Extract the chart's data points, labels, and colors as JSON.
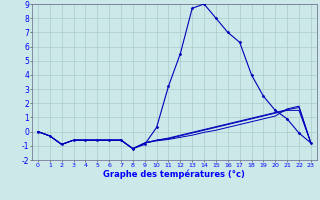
{
  "xlabel": "Graphe des températures (°c)",
  "bg_color": "#cce8e8",
  "grid_color": "#aacccc",
  "line_color": "#0000bb",
  "hours": [
    0,
    1,
    2,
    3,
    4,
    5,
    6,
    7,
    8,
    9,
    10,
    11,
    12,
    13,
    14,
    15,
    16,
    17,
    18,
    19,
    20,
    21,
    22,
    23
  ],
  "temp_main": [
    0.0,
    -0.3,
    -0.9,
    -0.6,
    -0.6,
    -0.6,
    -0.6,
    -0.6,
    -1.2,
    -0.9,
    0.3,
    3.2,
    5.5,
    8.7,
    9.0,
    8.0,
    7.0,
    6.3,
    4.0,
    2.5,
    1.5,
    0.9,
    -0.1,
    -0.8
  ],
  "temp_line1": [
    0.0,
    -0.3,
    -0.9,
    -0.6,
    -0.6,
    -0.6,
    -0.6,
    -0.6,
    -1.2,
    -0.8,
    -0.6,
    -0.5,
    -0.3,
    -0.1,
    0.1,
    0.3,
    0.5,
    0.7,
    0.9,
    1.1,
    1.3,
    1.5,
    1.5,
    -0.8
  ],
  "temp_line2": [
    0.0,
    -0.3,
    -0.9,
    -0.6,
    -0.6,
    -0.6,
    -0.6,
    -0.6,
    -1.2,
    -0.8,
    -0.6,
    -0.45,
    -0.25,
    -0.05,
    0.15,
    0.35,
    0.55,
    0.75,
    0.95,
    1.15,
    1.35,
    1.55,
    1.7,
    -0.8
  ],
  "temp_line3": [
    0.0,
    -0.3,
    -0.9,
    -0.6,
    -0.6,
    -0.6,
    -0.6,
    -0.6,
    -1.2,
    -0.8,
    -0.65,
    -0.55,
    -0.4,
    -0.25,
    -0.05,
    0.1,
    0.3,
    0.5,
    0.7,
    0.9,
    1.1,
    1.6,
    1.8,
    -0.8
  ],
  "ylim": [
    -2,
    9
  ],
  "yticks": [
    -2,
    -1,
    0,
    1,
    2,
    3,
    4,
    5,
    6,
    7,
    8,
    9
  ],
  "xticks": [
    0,
    1,
    2,
    3,
    4,
    5,
    6,
    7,
    8,
    9,
    10,
    11,
    12,
    13,
    14,
    15,
    16,
    17,
    18,
    19,
    20,
    21,
    22,
    23
  ]
}
